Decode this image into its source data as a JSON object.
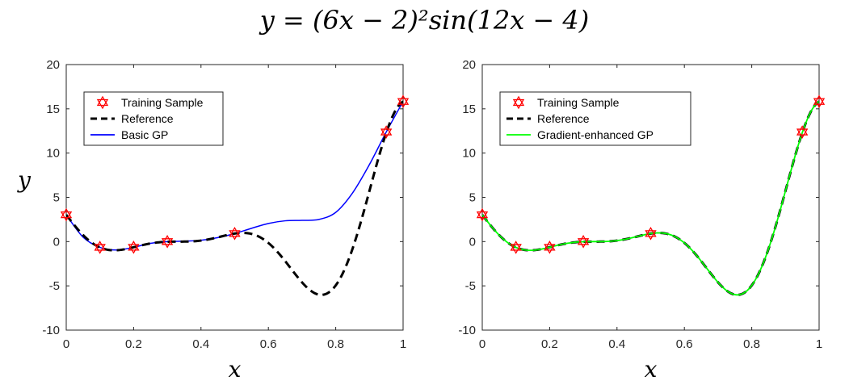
{
  "title": "y = (6x − 2)²sin(12x − 4)",
  "chart_data": [
    {
      "type": "line",
      "xlabel": "x",
      "ylabel": "y",
      "xlim": [
        0,
        1
      ],
      "ylim": [
        -10,
        20
      ],
      "xticks": [
        "0",
        "0.2",
        "0.4",
        "0.6",
        "0.8",
        "1"
      ],
      "yticks": [
        "-10",
        "-5",
        "0",
        "5",
        "10",
        "15",
        "20"
      ],
      "legend_position": "top-left",
      "grid": false,
      "series": [
        {
          "name": "Training Sample",
          "style": "markers",
          "color": "#ff0000",
          "x": [
            0,
            0.1,
            0.2,
            0.3,
            0.5,
            0.95,
            1.0
          ],
          "y": [
            3.03,
            -0.65,
            -0.64,
            0.0,
            0.91,
            12.38,
            15.83
          ]
        },
        {
          "name": "Reference",
          "style": "dashed",
          "color": "#000000",
          "function": "reference"
        },
        {
          "name": "Basic GP",
          "style": "solid",
          "color": "#0000ff",
          "x": [
            0,
            0.05,
            0.1,
            0.15,
            0.2,
            0.25,
            0.3,
            0.35,
            0.4,
            0.45,
            0.5,
            0.55,
            0.6,
            0.65,
            0.7,
            0.75,
            0.8,
            0.85,
            0.9,
            0.95,
            1.0
          ],
          "y": [
            3.03,
            0.5,
            -0.65,
            -0.95,
            -0.64,
            -0.2,
            0.0,
            0.05,
            0.15,
            0.45,
            0.91,
            1.5,
            2.05,
            2.35,
            2.4,
            2.5,
            3.3,
            5.5,
            8.7,
            12.38,
            15.83
          ]
        }
      ]
    },
    {
      "type": "line",
      "xlabel": "x",
      "ylabel": "",
      "xlim": [
        0,
        1
      ],
      "ylim": [
        -10,
        20
      ],
      "xticks": [
        "0",
        "0.2",
        "0.4",
        "0.6",
        "0.8",
        "1"
      ],
      "yticks": [
        "-10",
        "-5",
        "0",
        "5",
        "10",
        "15",
        "20"
      ],
      "legend_position": "top-left",
      "grid": false,
      "series": [
        {
          "name": "Training Sample",
          "style": "markers",
          "color": "#ff0000",
          "x": [
            0,
            0.1,
            0.2,
            0.3,
            0.5,
            0.95,
            1.0
          ],
          "y": [
            3.03,
            -0.65,
            -0.64,
            0.0,
            0.91,
            12.38,
            15.83
          ]
        },
        {
          "name": "Reference",
          "style": "dashed",
          "color": "#000000",
          "function": "reference"
        },
        {
          "name": "Gradient-enhanced GP",
          "style": "solid",
          "color": "#00ff00",
          "function": "reference"
        }
      ]
    }
  ]
}
